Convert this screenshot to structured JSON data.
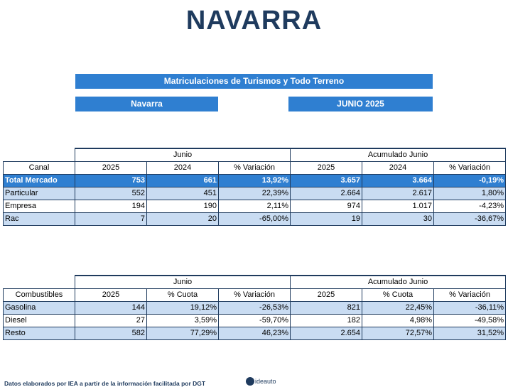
{
  "title": "NAVARRA",
  "banner_main": "Matriculaciones de Turismos y Todo Terreno",
  "banner_region": "Navarra",
  "banner_period": "JUNIO 2025",
  "table1": {
    "group_left": "Junio",
    "group_right": "Acumulado Junio",
    "col_label": "Canal",
    "cols": [
      "2025",
      "2024",
      "% Variación",
      "2025",
      "2024",
      "% Variación"
    ],
    "rows": [
      {
        "label": "Total Mercado",
        "values": [
          "753",
          "661",
          "13,92%",
          "3.657",
          "3.664",
          "-0,19%"
        ]
      },
      {
        "label": "Particular",
        "values": [
          "552",
          "451",
          "22,39%",
          "2.664",
          "2.617",
          "1,80%"
        ]
      },
      {
        "label": "Empresa",
        "values": [
          "194",
          "190",
          "2,11%",
          "974",
          "1.017",
          "-4,23%"
        ]
      },
      {
        "label": "Rac",
        "values": [
          "7",
          "20",
          "-65,00%",
          "19",
          "30",
          "-36,67%"
        ]
      }
    ]
  },
  "table2": {
    "group_left": "Junio",
    "group_right": "Acumulado Junio",
    "col_label": "Combustibles",
    "cols": [
      "2025",
      "% Cuota",
      "% Variación",
      "2025",
      "% Cuota",
      "% Variación"
    ],
    "rows": [
      {
        "label": "Gasolina",
        "values": [
          "144",
          "19,12%",
          "-26,53%",
          "821",
          "22,45%",
          "-36,11%"
        ]
      },
      {
        "label": "Diesel",
        "values": [
          "27",
          "3,59%",
          "-59,70%",
          "182",
          "4,98%",
          "-49,58%"
        ]
      },
      {
        "label": "Resto",
        "values": [
          "582",
          "77,29%",
          "46,23%",
          "2.654",
          "72,57%",
          "31,52%"
        ]
      }
    ]
  },
  "footer": "Datos elaborados por IEA a partir de la información facilitada por DGT",
  "logo_text": "ideauto"
}
